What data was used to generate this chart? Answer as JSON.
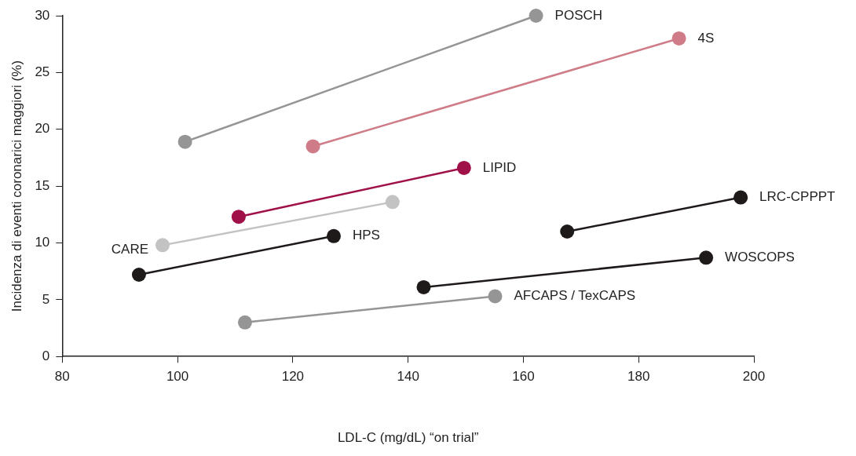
{
  "chart_data": {
    "type": "line",
    "xlabel": "LDL-C (mg/dL) “on trial”",
    "ylabel": "Incidenza di eventi coronarici maggiori (%)",
    "xlim": [
      80,
      200
    ],
    "xticks": [
      80,
      100,
      120,
      140,
      160,
      180,
      200
    ],
    "ylim": [
      0,
      30
    ],
    "yticks": [
      0,
      5,
      10,
      15,
      20,
      25,
      30
    ],
    "grid": false,
    "legend": false,
    "marker": "circle",
    "line_style": "solid",
    "series": [
      {
        "name": "POSCH",
        "color": "#959595",
        "x": [
          101.3,
          162.2
        ],
        "values": [
          18.9,
          30.0
        ]
      },
      {
        "name": "4S",
        "color": "#cf7c88",
        "x": [
          123.5,
          187.0
        ],
        "values": [
          18.5,
          28.0
        ]
      },
      {
        "name": "LIPID",
        "color": "#a0114a",
        "x": [
          110.6,
          149.7
        ],
        "values": [
          12.3,
          16.6
        ]
      },
      {
        "name": "CARE",
        "color": "#c3c3c3",
        "x": [
          97.4,
          137.3
        ],
        "values": [
          9.8,
          13.6
        ]
      },
      {
        "name": "HPS",
        "color": "#1e1a1a",
        "x": [
          93.3,
          127.1
        ],
        "values": [
          7.2,
          10.6
        ]
      },
      {
        "name": "LRC-CPPPT",
        "color": "#1e1a1a",
        "x": [
          167.6,
          197.7
        ],
        "values": [
          11.0,
          14.0
        ]
      },
      {
        "name": "WOSCOPS",
        "color": "#1e1a1a",
        "x": [
          142.7,
          191.7
        ],
        "values": [
          6.1,
          8.7
        ]
      },
      {
        "name": "AFCAPS / TexCAPS",
        "color": "#959595",
        "x": [
          111.7,
          155.1
        ],
        "values": [
          3.0,
          5.3
        ]
      }
    ]
  }
}
